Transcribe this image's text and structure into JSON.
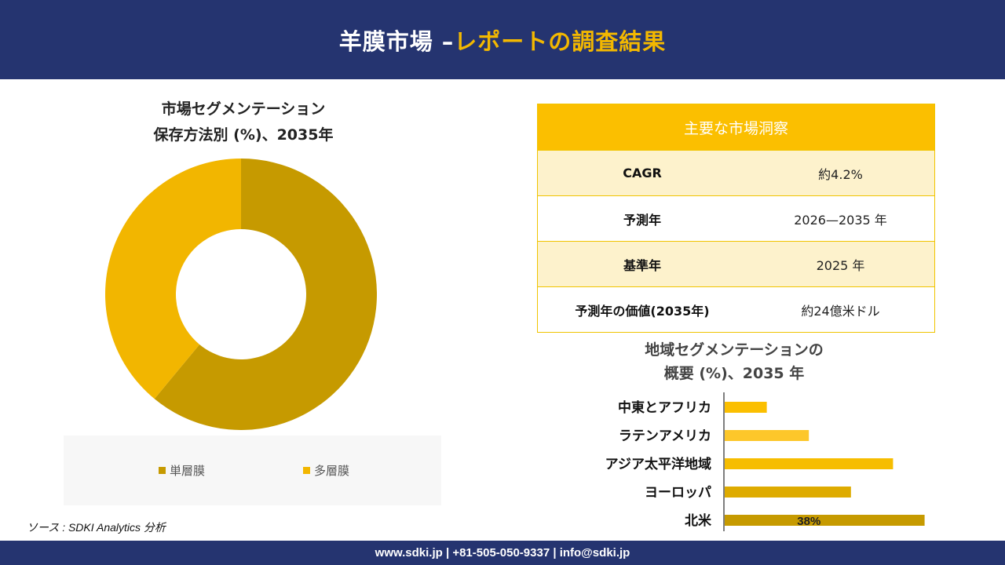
{
  "header": {
    "title_part1": "羊膜市場 –",
    "title_part2": "レポートの調査結果"
  },
  "donut": {
    "title_line1": "市場セグメンテーション",
    "title_line2": "保存方法別 (%)、2035年"
  },
  "insights": {
    "heading": "主要な市場洞察",
    "rows": [
      {
        "label": "CAGR",
        "value": "約4.2%"
      },
      {
        "label": "予測年",
        "value": "2026—2035 年"
      },
      {
        "label": "基準年",
        "value": "2025 年"
      },
      {
        "label": "予測年の価値(2035年)",
        "value": "約24億米ドル"
      }
    ]
  },
  "bar": {
    "title_line1": "地域セグメンテーションの",
    "title_line2": "概要 (%)、2035 年"
  },
  "source": "ソース : SDKI Analytics 分析",
  "footer": {
    "contact": "www.sdki.jp | +81-505-050-9337 | info@sdki.jp"
  },
  "chart_data": [
    {
      "type": "pie",
      "subtype": "donut",
      "title": "市場セグメンテーション 保存方法別 (%)、2035年",
      "categories": [
        "単層膜",
        "多層膜"
      ],
      "values": [
        61,
        39
      ],
      "colors": [
        "#c69a00",
        "#f2b600"
      ],
      "legend_position": "bottom"
    },
    {
      "type": "bar",
      "orientation": "horizontal",
      "title": "地域セグメンテーションの 概要 (%)、2035 年",
      "categories": [
        "中東とアフリカ",
        "ラテンアメリカ",
        "アジア太平洋地域",
        "ヨーロッパ",
        "北米"
      ],
      "values": [
        8,
        16,
        32,
        24,
        38
      ],
      "data_labels": [
        "",
        "",
        "",
        "",
        "38%"
      ],
      "colors": [
        "#fbbf00",
        "#fdc72a",
        "#f6bd00",
        "#deab00",
        "#c69a00"
      ],
      "xlim": [
        0,
        40
      ],
      "grid": false
    }
  ]
}
